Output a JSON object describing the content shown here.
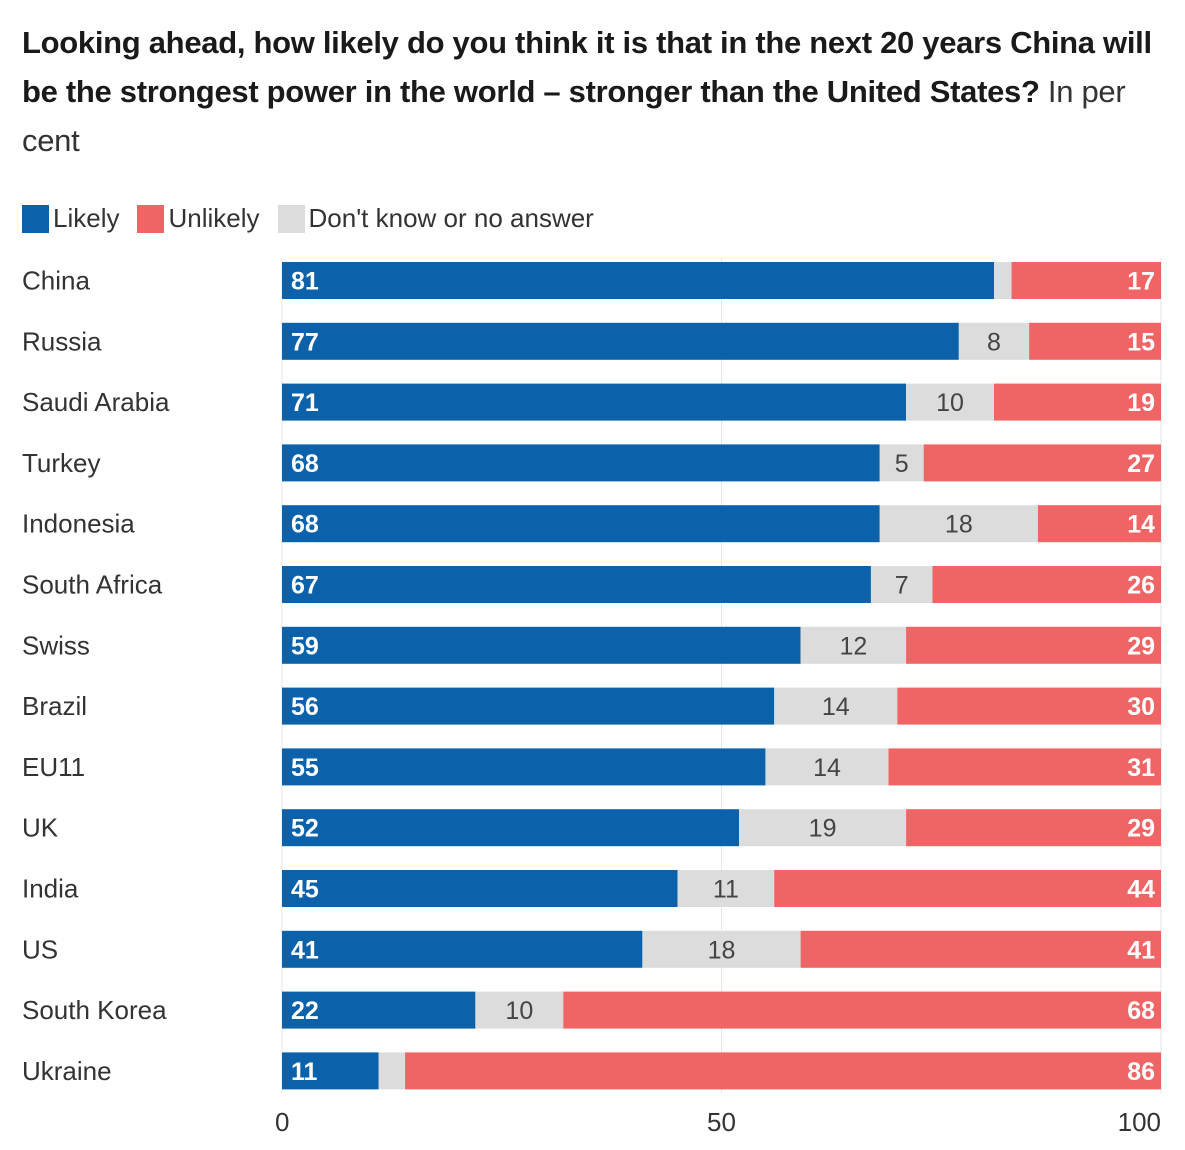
{
  "chart_data": {
    "type": "bar",
    "orientation": "horizontal",
    "stacked": true,
    "title": "Looking ahead, how likely do you think it is that in the next 20 years China will be the strongest power in the world – stronger than the United States?",
    "subtitle": "In per cent",
    "xlabel": "",
    "ylabel": "",
    "xlim": [
      0,
      100
    ],
    "xticks": [
      "0",
      "50",
      "100"
    ],
    "grid": true,
    "legend_position": "top-left",
    "categories": [
      "China",
      "Russia",
      "Saudi Arabia",
      "Turkey",
      "Indonesia",
      "South Africa",
      "Swiss",
      "Brazil",
      "EU11",
      "UK",
      "India",
      "US",
      "South Korea",
      "Ukraine"
    ],
    "series": [
      {
        "name": "Likely",
        "color": "#0b62ab",
        "values": [
          81,
          77,
          71,
          68,
          68,
          67,
          59,
          56,
          55,
          52,
          45,
          41,
          22,
          11
        ],
        "labels": [
          "81",
          "77",
          "71",
          "68",
          "68",
          "67",
          "59",
          "56",
          "55",
          "52",
          "45",
          "41",
          "22",
          "11"
        ]
      },
      {
        "name": "Don't know or no answer",
        "color": "#dcdcdc",
        "values": [
          2,
          8,
          10,
          5,
          18,
          7,
          12,
          14,
          14,
          19,
          11,
          18,
          10,
          3
        ],
        "labels": [
          "",
          "8",
          "10",
          "5",
          "18",
          "7",
          "12",
          "14",
          "14",
          "19",
          "11",
          "18",
          "10",
          ""
        ]
      },
      {
        "name": "Unlikely",
        "color": "#ef6464",
        "values": [
          17,
          15,
          19,
          27,
          14,
          26,
          29,
          30,
          31,
          29,
          44,
          41,
          68,
          86
        ],
        "labels": [
          "17",
          "15",
          "19",
          "27",
          "14",
          "26",
          "29",
          "30",
          "31",
          "29",
          "44",
          "41",
          "68",
          "86"
        ]
      }
    ],
    "legend": [
      {
        "label": "Likely",
        "color": "#0b62ab"
      },
      {
        "label": "Unlikely",
        "color": "#ef6464"
      },
      {
        "label": "Don't know or no answer",
        "color": "#dcdcdc"
      }
    ]
  },
  "header": {
    "title_bold": "Looking ahead, how likely do you think it is that in the next 20 years China will be the strongest power in the world – stronger than the United States?",
    "title_suffix": " In per cent"
  }
}
